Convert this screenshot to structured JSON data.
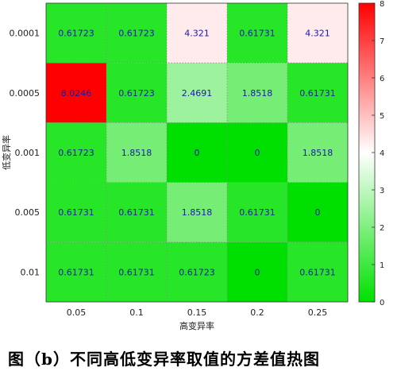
{
  "chart_data": {
    "type": "heatmap",
    "title": "",
    "xlabel": "高变异率",
    "ylabel": "低变异率",
    "x_categories": [
      "0.05",
      "0.1",
      "0.15",
      "0.2",
      "0.25"
    ],
    "y_categories": [
      "0.0001",
      "0.0005",
      "0.001",
      "0.005",
      "0.01"
    ],
    "cell_labels": [
      [
        "0.61723",
        "0.61723",
        "4.321",
        "0.61731",
        "4.321"
      ],
      [
        "8.0246",
        "0.61723",
        "2.4691",
        "1.8518",
        "0.61731"
      ],
      [
        "0.61723",
        "1.8518",
        "0",
        "0",
        "1.8518"
      ],
      [
        "0.61731",
        "0.61731",
        "1.8518",
        "0.61731",
        "0"
      ],
      [
        "0.61731",
        "0.61731",
        "0.61723",
        "0",
        "0.61731"
      ]
    ],
    "colorbar": {
      "range": [
        0,
        8
      ],
      "ticks": [
        "0",
        "1",
        "2",
        "3",
        "4",
        "5",
        "6",
        "7",
        "8"
      ],
      "low_color": "#00e000",
      "mid_color": "#ffffff",
      "high_color": "#ff0000"
    },
    "grid": true,
    "cell_text_color": "#1a1aa6"
  },
  "caption": "图（b）不同高低变异率取值的方差值热图"
}
